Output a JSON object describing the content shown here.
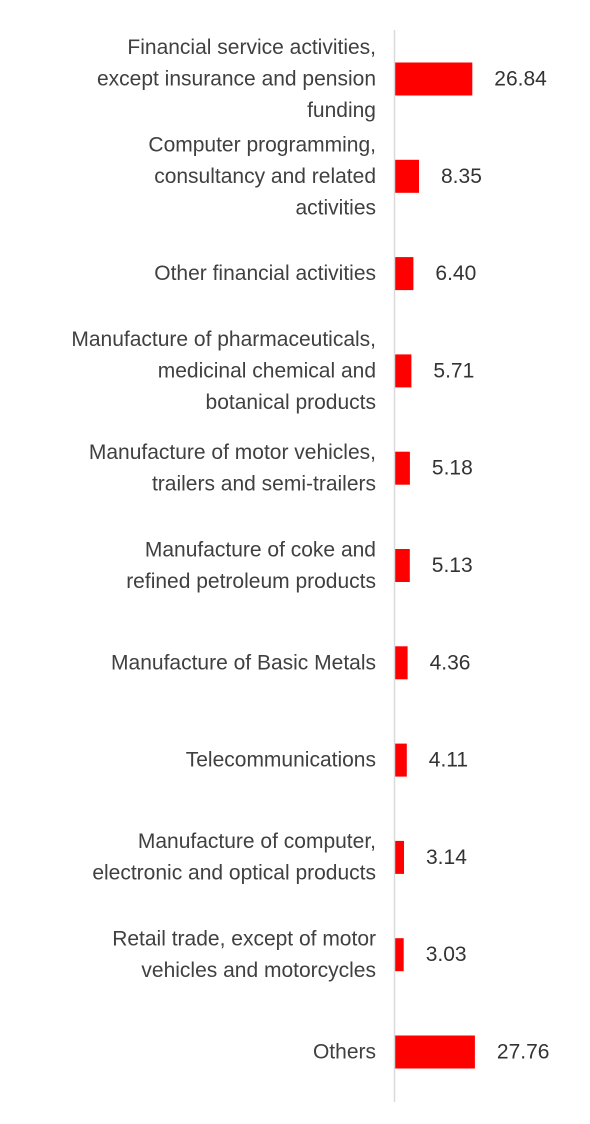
{
  "chart_data": {
    "type": "bar",
    "orientation": "horizontal",
    "categories": [
      "Financial service activities, except insurance and pension funding",
      "Computer programming, consultancy and related activities",
      "Other financial activities",
      "Manufacture of pharmaceuticals, medicinal chemical and botanical products",
      "Manufacture of motor vehicles, trailers and semi-trailers",
      "Manufacture of coke and refined petroleum products",
      "Manufacture of Basic Metals",
      "Telecommunications",
      "Manufacture of computer, electronic and optical products",
      "Retail trade, except of motor vehicles and motorcycles",
      "Others"
    ],
    "category_lines": [
      [
        "Financial service activities,",
        "except insurance and pension",
        "funding"
      ],
      [
        "Computer programming,",
        "consultancy and related",
        "activities"
      ],
      [
        "Other financial activities"
      ],
      [
        "Manufacture of pharmaceuticals,",
        "medicinal chemical and",
        "botanical products"
      ],
      [
        "Manufacture of motor vehicles,",
        "trailers and semi-trailers"
      ],
      [
        "Manufacture of coke and",
        "refined petroleum products"
      ],
      [
        "Manufacture of Basic Metals"
      ],
      [
        "Telecommunications"
      ],
      [
        "Manufacture of computer,",
        "electronic and optical products"
      ],
      [
        "Retail trade, except of motor",
        "vehicles and motorcycles"
      ],
      [
        "Others"
      ]
    ],
    "values": [
      26.84,
      8.35,
      6.4,
      5.71,
      5.18,
      5.13,
      4.36,
      4.11,
      3.14,
      3.03,
      27.76
    ],
    "value_labels": [
      "26.84",
      "8.35",
      "6.40",
      "5.71",
      "5.18",
      "5.13",
      "4.36",
      "4.11",
      "3.14",
      "3.03",
      "27.76"
    ],
    "title": "",
    "xlabel": "",
    "ylabel": "",
    "xlim": [
      0,
      28
    ],
    "grid": false,
    "legend": "none",
    "colors": {
      "bar": "#ff0000",
      "axis": "#d9d9d9",
      "label": "#404040",
      "value": "#333333"
    }
  }
}
